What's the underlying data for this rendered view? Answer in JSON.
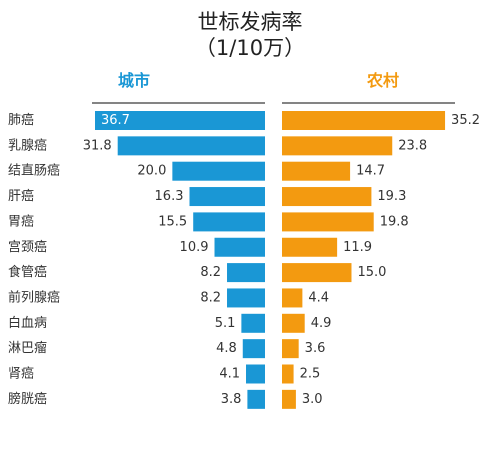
{
  "chart_data": {
    "type": "bar",
    "orientation": "horizontal-butterfly",
    "title": "世标发病率",
    "subtitle": "（1/10万）",
    "categories": [
      "肺癌",
      "乳腺癌",
      "结直肠癌",
      "肝癌",
      "胃癌",
      "宫颈癌",
      "食管癌",
      "前列腺癌",
      "白血病",
      "淋巴瘤",
      "肾癌",
      "膀胱癌"
    ],
    "series": [
      {
        "name": "城市",
        "color": "#1a97d5",
        "values": [
          36.7,
          31.8,
          20.0,
          16.3,
          15.5,
          10.9,
          8.2,
          8.2,
          5.1,
          4.8,
          4.1,
          3.8
        ],
        "labels": [
          "36.7",
          "31.8",
          "20.0",
          "16.3",
          "15.5",
          "10.9",
          "8.2",
          "8.2",
          "5.1",
          "4.8",
          "4.1",
          "3.8"
        ]
      },
      {
        "name": "农村",
        "color": "#f39a10",
        "values": [
          35.2,
          23.8,
          14.7,
          19.3,
          19.8,
          11.9,
          15.0,
          4.4,
          4.9,
          3.6,
          2.5,
          3.0
        ],
        "labels": [
          "35.2",
          "23.8",
          "14.7",
          "19.3",
          "19.8",
          "11.9",
          "15.0",
          "4.4",
          "4.9",
          "3.6",
          "2.5",
          "3.0"
        ]
      }
    ],
    "xlim": [
      0,
      36.7
    ],
    "grid": false,
    "legend": "none"
  }
}
